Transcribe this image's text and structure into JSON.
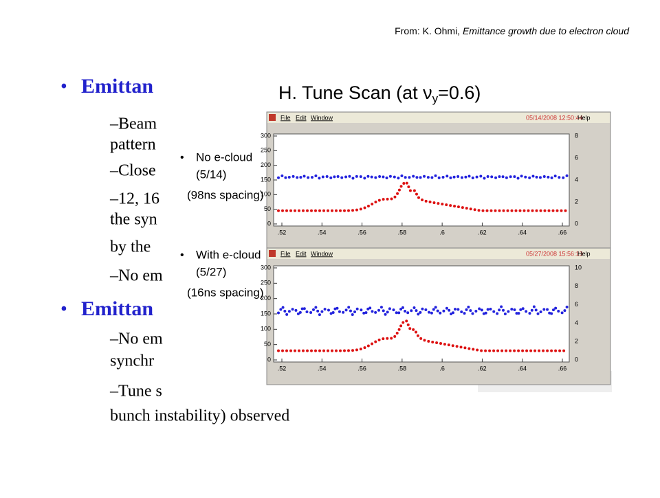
{
  "header": {
    "source_prefix": "From: K. Ohmi, ",
    "source_title": "Emittance growth due to electron cloud"
  },
  "bullets": [
    {
      "level": 1,
      "text": "Emittan"
    },
    {
      "level": 2,
      "text": "–Beam"
    },
    {
      "level": 2,
      "text": "pattern"
    },
    {
      "level": 2,
      "text": "–Close"
    },
    {
      "level": 2,
      "text": "–12, 16"
    },
    {
      "level": 2,
      "text": "the syn"
    },
    {
      "level": 2,
      "text": "by the"
    },
    {
      "level": 2,
      "text": "–No em"
    },
    {
      "level": 1,
      "text": "Emittan"
    },
    {
      "level": 2,
      "text": "–No em"
    },
    {
      "level": 2,
      "text": "synchr"
    },
    {
      "level": 2,
      "text": "–Tune s"
    },
    {
      "level": 2,
      "text": "bunch instability) observed"
    }
  ],
  "overlay": {
    "title_main": "H. Tune Scan  (at ν",
    "title_sub": "y",
    "title_end": "=0.6)",
    "legend": [
      {
        "label": "No e-cloud",
        "date": "(5/14)",
        "spacing": "(98ns spacing)"
      },
      {
        "label": "With e-cloud",
        "date": "(5/27)",
        "spacing": "(16ns spacing)"
      }
    ],
    "windows": [
      {
        "menu": [
          "File",
          "Edit",
          "Window"
        ],
        "timestamp": "05/14/2008 12:50:44",
        "help": "Help",
        "left_ticks": [
          "0",
          "50",
          "100",
          "150",
          "200",
          "250",
          "300"
        ],
        "right_ticks": [
          "0",
          "2",
          "4",
          "6",
          "8"
        ],
        "x_ticks": [
          ".52",
          ".54",
          ".56",
          ".58",
          ".6",
          ".62",
          ".64",
          ".66"
        ]
      },
      {
        "menu": [
          "File",
          "Edit",
          "Window"
        ],
        "timestamp": "05/27/2008 15:56:13",
        "help": "Help",
        "left_ticks": [
          "0",
          "50",
          "100",
          "150",
          "200",
          "250",
          "300"
        ],
        "right_ticks": [
          "0",
          "2",
          "4",
          "6",
          "8",
          "10"
        ],
        "x_ticks": [
          ".52",
          ".54",
          ".56",
          ".58",
          ".6",
          ".62",
          ".64",
          ".66"
        ]
      }
    ]
  }
}
